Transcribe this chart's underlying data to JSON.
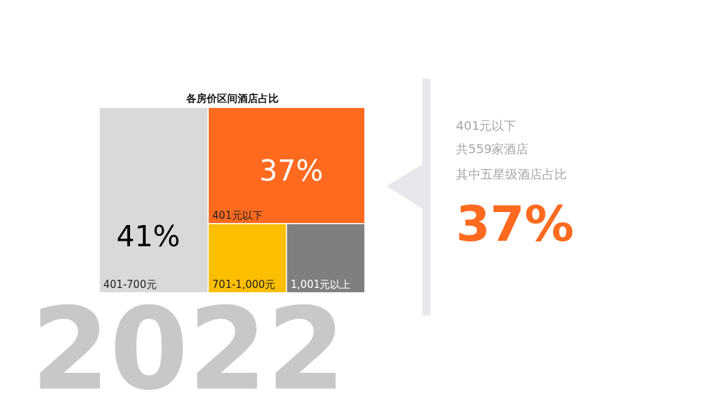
{
  "chart_data": {
    "type": "other",
    "title": "各房价区间酒店占比",
    "categories": [
      "401-700元",
      "401元以下",
      "701-1,000元",
      "1,001元以上"
    ],
    "values": [
      41,
      37,
      null,
      null
    ],
    "value_labels": [
      "41%",
      "37%",
      null,
      null
    ],
    "colors": [
      "#d9d9d9",
      "#ff6a1f",
      "#fcbf00",
      "#7f7f7f"
    ],
    "annotations": [
      "2022",
      "401元以下",
      "共559家酒店",
      "其中五星级酒店占比",
      "37%"
    ]
  }
}
